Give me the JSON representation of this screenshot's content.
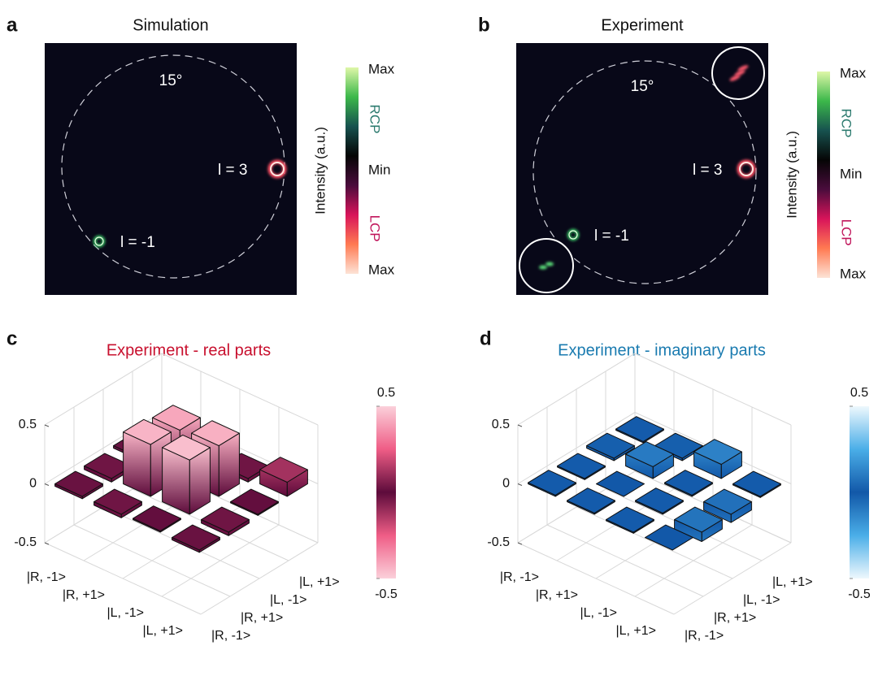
{
  "chart_data": [
    {
      "type": "image",
      "label": "a",
      "title": "Simulation",
      "angle_label": "15°",
      "spot_labels": [
        "l = 3",
        "l = -1"
      ],
      "colorbar_label": "Intensity (a.u.)",
      "colorbar_ticks": [
        "Max",
        "RCP",
        "Min",
        "LCP",
        "Max"
      ],
      "colormap": [
        "#dff7a8",
        "#3cb84a",
        "#17524f",
        "#050505",
        "#4a0c3c",
        "#d8145a",
        "#ff7a52",
        "#fde3d6"
      ]
    },
    {
      "type": "image",
      "label": "b",
      "title": "Experiment",
      "angle_label": "15°",
      "spot_labels": [
        "l = 3",
        "l = -1"
      ],
      "colorbar_label": "Intensity (a.u.)",
      "colorbar_ticks": [
        "Max",
        "RCP",
        "Min",
        "LCP",
        "Max"
      ],
      "colormap": [
        "#dff7a8",
        "#3cb84a",
        "#17524f",
        "#050505",
        "#4a0c3c",
        "#d8145a",
        "#ff7a52",
        "#fde3d6"
      ]
    },
    {
      "type": "bar3d",
      "label": "c",
      "title": "Experiment - real parts",
      "title_color": "#c8102e",
      "rows": [
        "|R, -1>",
        "|R, +1>",
        "|L, -1>",
        "|L, +1>"
      ],
      "cols": [
        "|R, -1>",
        "|R, +1>",
        "|L, -1>",
        "|L, +1>"
      ],
      "values": [
        [
          -0.02,
          -0.03,
          0.02,
          -0.02
        ],
        [
          -0.03,
          0.44,
          0.41,
          -0.02
        ],
        [
          0.01,
          0.46,
          0.43,
          -0.03
        ],
        [
          -0.02,
          -0.03,
          -0.01,
          0.12
        ]
      ],
      "zlim": [
        -0.5,
        0.5
      ],
      "zticks": [
        -0.5,
        0,
        0.5
      ],
      "grid": true,
      "colormap": [
        "#fbd0da",
        "#ef5d86",
        "#5d0b3b",
        "#ef5d86",
        "#fbd0da"
      ],
      "cbticks": [
        0.5,
        -0.5
      ]
    },
    {
      "type": "bar3d",
      "label": "d",
      "title": "Experiment - imaginary parts",
      "title_color": "#1a7bb0",
      "rows": [
        "|R, -1>",
        "|R, +1>",
        "|L, -1>",
        "|L, +1>"
      ],
      "cols": [
        "|R, -1>",
        "|R, +1>",
        "|L, -1>",
        "|L, +1>"
      ],
      "values": [
        [
          0.01,
          -0.01,
          0.02,
          0.01
        ],
        [
          0.01,
          0,
          0.1,
          0.02
        ],
        [
          -0.01,
          0.01,
          0.01,
          0.12
        ],
        [
          0,
          -0.08,
          -0.07,
          -0.01
        ]
      ],
      "zlim": [
        -0.5,
        0.5
      ],
      "zticks": [
        -0.5,
        0,
        0.5
      ],
      "grid": true,
      "colormap": [
        "#eef8fd",
        "#4aaee8",
        "#1258a8",
        "#4aaee8",
        "#eef8fd"
      ],
      "cbticks": [
        0.5,
        -0.5
      ]
    }
  ]
}
